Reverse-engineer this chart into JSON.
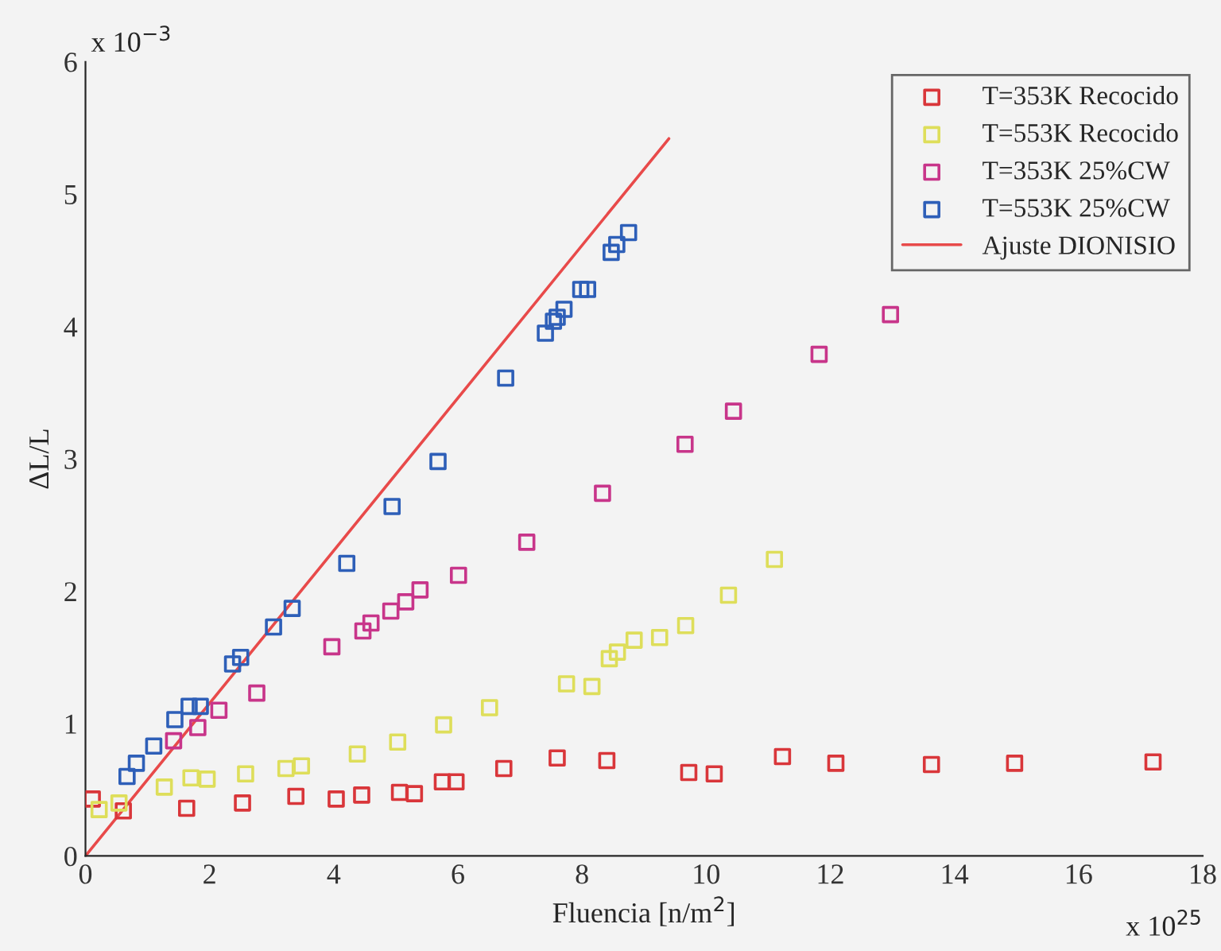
{
  "chart_data": {
    "type": "scatter",
    "xlabel": "Fluencia [n/m$^{2}$]",
    "ylabel": "ΔL/L",
    "annotations": [
      "x 10$^{−3}$",
      "x 10$^{25}$"
    ],
    "xlim": [
      0,
      18
    ],
    "xticks": [
      0,
      2,
      4,
      6,
      8,
      10,
      12,
      14,
      16,
      18
    ],
    "ylim": [
      0,
      6
    ],
    "yticks": [
      0,
      1,
      2,
      3,
      4,
      5,
      6
    ],
    "grid": false,
    "legend": "top right",
    "marker": "square",
    "series": [
      {
        "name": "T=353K Recocido",
        "color": "#d9363a",
        "x": [
          0.11,
          0.61,
          1.63,
          2.53,
          3.39,
          4.04,
          4.45,
          5.06,
          5.3,
          5.75,
          5.97,
          6.74,
          7.6,
          8.4,
          9.72,
          10.13,
          11.23,
          12.09,
          13.63,
          14.97,
          17.2
        ],
        "values": [
          0.43,
          0.34,
          0.36,
          0.4,
          0.45,
          0.43,
          0.46,
          0.48,
          0.47,
          0.56,
          0.56,
          0.66,
          0.74,
          0.72,
          0.63,
          0.62,
          0.75,
          0.7,
          0.69,
          0.7,
          0.71
        ]
      },
      {
        "name": "T=553K Recocido",
        "color": "#dede5a",
        "x": [
          0.22,
          0.54,
          1.27,
          1.7,
          1.96,
          2.58,
          3.23,
          3.48,
          4.38,
          5.03,
          5.77,
          6.51,
          7.75,
          8.16,
          8.44,
          8.57,
          8.84,
          9.25,
          9.67,
          10.36,
          11.1
        ],
        "values": [
          0.35,
          0.4,
          0.52,
          0.59,
          0.58,
          0.62,
          0.66,
          0.68,
          0.77,
          0.86,
          0.99,
          1.12,
          1.3,
          1.28,
          1.49,
          1.54,
          1.63,
          1.65,
          1.74,
          1.97,
          2.24
        ]
      },
      {
        "name": "T=353K 25%CW",
        "color": "#c8358a",
        "x": [
          1.42,
          1.81,
          2.15,
          2.76,
          3.97,
          4.47,
          4.6,
          4.92,
          5.16,
          5.39,
          6.01,
          7.11,
          8.33,
          9.66,
          10.44,
          11.82,
          12.97
        ],
        "values": [
          0.87,
          0.97,
          1.1,
          1.23,
          1.58,
          1.7,
          1.76,
          1.85,
          1.92,
          2.01,
          2.12,
          2.37,
          2.74,
          3.11,
          3.36,
          3.79,
          4.09
        ]
      },
      {
        "name": "T=553K 25%CW",
        "color": "#2e5fb8",
        "x": [
          0.67,
          0.82,
          1.1,
          1.44,
          1.67,
          1.85,
          2.37,
          2.5,
          3.03,
          3.33,
          4.21,
          4.94,
          5.68,
          6.77,
          7.41,
          7.54,
          7.6,
          7.71,
          7.98,
          8.09,
          8.47,
          8.56,
          8.75
        ],
        "values": [
          0.6,
          0.7,
          0.83,
          1.03,
          1.13,
          1.13,
          1.45,
          1.5,
          1.73,
          1.87,
          2.21,
          2.64,
          2.98,
          3.61,
          3.95,
          4.04,
          4.07,
          4.13,
          4.28,
          4.28,
          4.56,
          4.62,
          4.71
        ]
      },
      {
        "name": "Ajuste DIONISIO",
        "type": "line",
        "color": "#e84a4a",
        "marker": "none",
        "x": [
          0,
          9.4
        ],
        "values": [
          0,
          5.42
        ]
      }
    ]
  }
}
